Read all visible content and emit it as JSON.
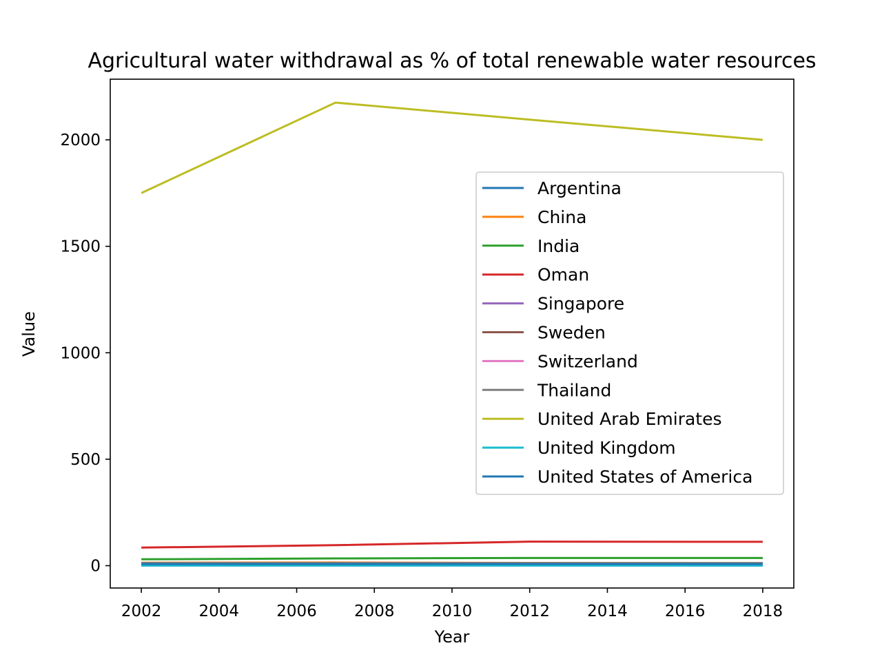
{
  "chart_data": {
    "type": "line",
    "title": "Agricultural water withdrawal as % of total renewable water resources",
    "xlabel": "Year",
    "ylabel": "Value",
    "xlim": [
      2001.2,
      2018.8
    ],
    "ylim": [
      -105,
      2285
    ],
    "xticks": [
      2002,
      2004,
      2006,
      2008,
      2010,
      2012,
      2014,
      2016,
      2018
    ],
    "yticks": [
      0,
      500,
      1000,
      1500,
      2000
    ],
    "grid": false,
    "legend_position": "center-right",
    "x": [
      2002,
      2007,
      2012,
      2018
    ],
    "series": [
      {
        "name": "Argentina",
        "color": "#1f77b4",
        "values": [
          4,
          4,
          4,
          4
        ]
      },
      {
        "name": "China",
        "color": "#ff7f0e",
        "values": [
          14,
          15,
          13,
          12
        ]
      },
      {
        "name": "India",
        "color": "#2ca02c",
        "values": [
          30,
          34,
          36,
          36
        ]
      },
      {
        "name": "Oman",
        "color": "#d62728",
        "values": [
          85,
          96,
          113,
          112
        ]
      },
      {
        "name": "Singapore",
        "color": "#9467bd",
        "values": [
          1,
          1,
          1,
          1
        ]
      },
      {
        "name": "Sweden",
        "color": "#8c564b",
        "values": [
          0.1,
          0.1,
          0.1,
          0.1
        ]
      },
      {
        "name": "Switzerland",
        "color": "#e377c2",
        "values": [
          0.1,
          0.1,
          0.1,
          0.1
        ]
      },
      {
        "name": "Thailand",
        "color": "#7f7f7f",
        "values": [
          12,
          12,
          12,
          12
        ]
      },
      {
        "name": "United Arab Emirates",
        "color": "#bcbd22",
        "values": [
          1750,
          2175,
          2095,
          2000
        ]
      },
      {
        "name": "United Kingdom",
        "color": "#17becf",
        "values": [
          0.5,
          0.5,
          0.5,
          0.5
        ]
      },
      {
        "name": "United States of America",
        "color": "#1f77b4",
        "values": [
          8,
          8,
          8,
          8
        ]
      }
    ]
  }
}
